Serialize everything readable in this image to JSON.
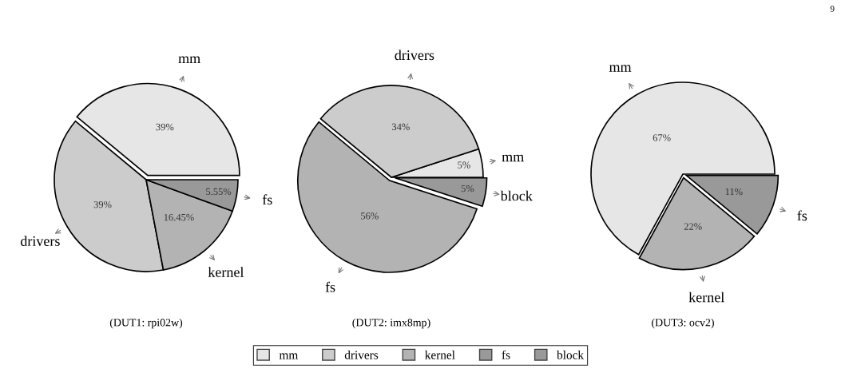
{
  "chart_data": [
    {
      "type": "pie",
      "title": "(DUT1: rpi02w)",
      "categories": [
        "mm",
        "drivers",
        "kernel",
        "fs"
      ],
      "values": [
        39,
        39,
        16.45,
        5.55
      ],
      "colors": [
        "#e6e6e6",
        "#cccccc",
        "#b3b3b3",
        "#999999"
      ],
      "value_labels": [
        "39%",
        "39%",
        "16.45%",
        "5.55%"
      ],
      "legend": "bottom"
    },
    {
      "type": "pie",
      "title": "(DUT2: imx8mp)",
      "categories": [
        "mm",
        "drivers",
        "fs",
        "block"
      ],
      "values": [
        5,
        34,
        56,
        5
      ],
      "colors": [
        "#e6e6e6",
        "#cccccc",
        "#b3b3b3",
        "#999999"
      ],
      "value_labels": [
        "5%",
        "34%",
        "56%",
        "5%"
      ]
    },
    {
      "type": "pie",
      "title": "(DUT3: ocv2)",
      "categories": [
        "mm",
        "kernel",
        "fs"
      ],
      "values": [
        67,
        22,
        11
      ],
      "colors": [
        "#e6e6e6",
        "#b3b3b3",
        "#999999"
      ],
      "value_labels": [
        "67%",
        "22%",
        "11%"
      ],
      "annotations": [
        "9"
      ]
    }
  ]
}
